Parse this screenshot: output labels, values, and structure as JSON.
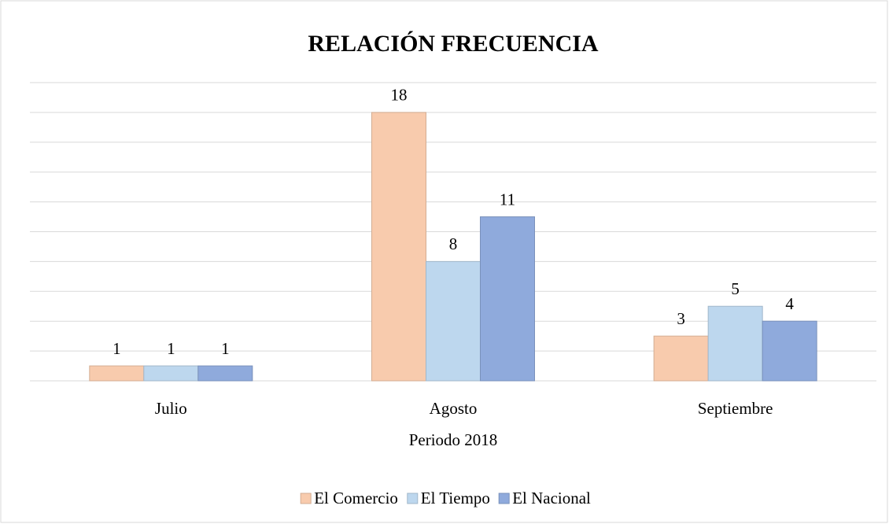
{
  "chart_data": {
    "type": "bar",
    "title": "RELACIÓN FRECUENCIA",
    "x_label": "Periodo 2018",
    "categories": [
      "Julio",
      "Agosto",
      "Septiembre"
    ],
    "series": [
      {
        "name": "El Comercio",
        "color": "#f8cbad",
        "values": [
          1,
          18,
          3
        ]
      },
      {
        "name": "El Tiempo",
        "color": "#bdd7ee",
        "values": [
          1,
          8,
          5
        ]
      },
      {
        "name": "El Nacional",
        "color": "#8faadc",
        "values": [
          1,
          11,
          4
        ]
      }
    ],
    "ylim": [
      0,
      20
    ],
    "yticks": [
      0,
      2,
      4,
      6,
      8,
      10,
      12,
      14,
      16,
      18,
      20
    ],
    "grid": true,
    "legend": "bottom"
  }
}
